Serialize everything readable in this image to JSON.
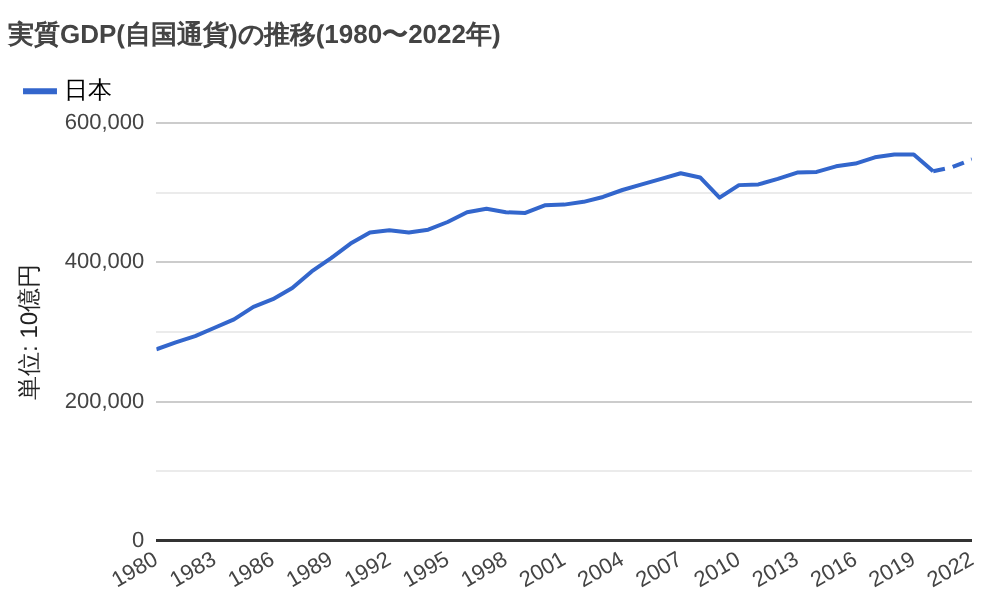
{
  "chart_data": {
    "type": "line",
    "title": "実質GDP(自国通貨)の推移(1980〜2022年)",
    "ylabel": "単位: 10億円",
    "x": [
      1980,
      1981,
      1982,
      1983,
      1984,
      1985,
      1986,
      1987,
      1988,
      1989,
      1990,
      1991,
      1992,
      1993,
      1994,
      1995,
      1996,
      1997,
      1998,
      1999,
      2000,
      2001,
      2002,
      2003,
      2004,
      2005,
      2006,
      2007,
      2008,
      2009,
      2010,
      2011,
      2012,
      2013,
      2014,
      2015,
      2016,
      2017,
      2018,
      2019,
      2020,
      2021,
      2022
    ],
    "series": [
      {
        "name": "日本",
        "color": "#3366cc",
        "line_style": "solid",
        "values": [
          275000,
          285000,
          294000,
          306000,
          318000,
          336000,
          347000,
          363000,
          387000,
          406000,
          427000,
          443000,
          446000,
          443000,
          447000,
          458000,
          472000,
          477000,
          472000,
          471000,
          482000,
          483000,
          487000,
          494000,
          504000,
          512000,
          520000,
          528000,
          522000,
          493000,
          511000,
          512000,
          520000,
          529000,
          530000,
          538000,
          542000,
          551000,
          555000,
          555000,
          531000,
          null,
          null
        ]
      },
      {
        "color": "#3366cc",
        "line_style": "dashed",
        "values": [
          null,
          null,
          null,
          null,
          null,
          null,
          null,
          null,
          null,
          null,
          null,
          null,
          null,
          null,
          null,
          null,
          null,
          null,
          null,
          null,
          null,
          null,
          null,
          null,
          null,
          null,
          null,
          null,
          null,
          null,
          null,
          null,
          null,
          null,
          null,
          null,
          null,
          null,
          null,
          null,
          531000,
          537000,
          548000
        ]
      }
    ],
    "xlim": [
      1980,
      2022
    ],
    "xticks": [
      1980,
      1983,
      1986,
      1989,
      1992,
      1995,
      1998,
      2001,
      2004,
      2007,
      2010,
      2013,
      2016,
      2019,
      2022
    ],
    "ylim": [
      0,
      600000
    ],
    "yticks": [
      0,
      {
        "value": 100000,
        "label": null
      },
      {
        "value": 200000,
        "label": "200,000"
      },
      {
        "value": 300000,
        "label": null
      },
      {
        "value": 400000,
        "label": "400,000"
      },
      {
        "value": 500000,
        "label": null
      },
      {
        "value": 600000,
        "label": "600,000"
      }
    ],
    "grid": "y",
    "legend": "top left",
    "marker": "none"
  }
}
